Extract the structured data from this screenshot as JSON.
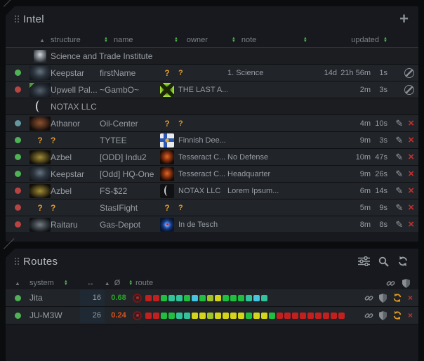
{
  "glyphs": {
    "sort_up": "▲",
    "sort_down": "▼",
    "updown": "↔",
    "avg": "Ø",
    "unknown": "?",
    "plus": "+",
    "pencil": "✎",
    "close": "×"
  },
  "colors": {
    "page_bg": "#0b0c0e",
    "panel_bg": "#17191e",
    "row_bg": "#212429",
    "group_row_bg": "#1b1d21",
    "status_green": "#4fb356",
    "status_red": "#b84442",
    "status_teal": "#64989e",
    "sort_arrow_green": "#4fae4f",
    "unknown_orange": "#e09a2c",
    "delete_red": "#c23030",
    "sec_high_green": "#26a826",
    "sec_low_orange": "#d9531e",
    "refresh_orange": "#e09a20",
    "route_red": "#c41f1f",
    "route_green": "#1fbf3f",
    "route_teal": "#2fc49a",
    "route_cyan": "#46c5e2",
    "route_yellow": "#d4d418",
    "route_olive": "#9fc428"
  },
  "intel": {
    "title": "Intel",
    "columns": {
      "structure": "structure",
      "name": "name",
      "owner": "owner",
      "note": "note",
      "updated": "updated"
    },
    "rows": [
      {
        "group": true,
        "icon": "sti",
        "label": "Science and Trade Institute"
      },
      {
        "status": "green",
        "struct_icon": "keepstar",
        "structure": "Keepstar",
        "name": "firstName",
        "owner_icon": "unknown",
        "owner": "?",
        "note": "1. Science",
        "upd_d": "14d",
        "upd_m": "21h 56m",
        "upd_s": "1s",
        "actions": "ban"
      },
      {
        "status": "red",
        "struct_icon": "upwell",
        "structure": "Upwell Pal...",
        "name": "~GambO~",
        "owner_icon": "lasta",
        "owner": "THE LAST A...",
        "note": "",
        "upd_d": "",
        "upd_m": "2m",
        "upd_s": "3s",
        "actions": "ban"
      },
      {
        "group": true,
        "icon": "notax",
        "label": "NOTAX LLC"
      },
      {
        "status": "teal",
        "struct_icon": "athanor",
        "structure": "Athanor",
        "name": "Oil-Center",
        "owner_icon": "unknown",
        "owner": "?",
        "note": "",
        "upd_d": "",
        "upd_m": "4m",
        "upd_s": "10s",
        "actions": "edit"
      },
      {
        "status": "green",
        "struct_icon": "unknown",
        "structure": "?",
        "name": "TYTEE",
        "owner_icon": "finnish",
        "owner": "Finnish Dee...",
        "note": "",
        "upd_d": "",
        "upd_m": "9m",
        "upd_s": "3s",
        "actions": "edit"
      },
      {
        "status": "green",
        "struct_icon": "azbel",
        "structure": "Azbel",
        "name": "[ODD] Indu2",
        "owner_icon": "tesseract",
        "owner": "Tesseract C...",
        "note": "No Defense",
        "upd_d": "",
        "upd_m": "10m",
        "upd_s": "47s",
        "actions": "edit"
      },
      {
        "status": "green",
        "struct_icon": "keepstar",
        "structure": "Keepstar",
        "name": "[Odd] HQ-One",
        "owner_icon": "tesseract",
        "owner": "Tesseract C...",
        "note": "Headquarter",
        "upd_d": "",
        "upd_m": "9m",
        "upd_s": "26s",
        "actions": "edit"
      },
      {
        "status": "red",
        "struct_icon": "azbel",
        "structure": "Azbel",
        "name": "FS-$22",
        "owner_icon": "notax",
        "owner": "NOTAX LLC",
        "note": "Lorem Ipsum...",
        "upd_d": "",
        "upd_m": "6m",
        "upd_s": "14s",
        "actions": "edit"
      },
      {
        "status": "red",
        "struct_icon": "unknown",
        "structure": "?",
        "name": "StasIFight",
        "owner_icon": "unknown",
        "owner": "?",
        "note": "",
        "upd_d": "",
        "upd_m": "5m",
        "upd_s": "9s",
        "actions": "edit"
      },
      {
        "status": "red",
        "struct_icon": "raitaru",
        "structure": "Raitaru",
        "name": "Gas-Depot",
        "owner_icon": "indetesch",
        "owner": "In de Tesch",
        "note": "",
        "upd_d": "",
        "upd_m": "8m",
        "upd_s": "8s",
        "actions": "edit"
      }
    ]
  },
  "routes": {
    "title": "Routes",
    "toolbar_icons": [
      "settings-sliders",
      "search",
      "refresh"
    ],
    "columns": {
      "system": "system",
      "jumps": "↔",
      "avg": "Ø",
      "route": "route"
    },
    "header_icons": [
      "link",
      "shield"
    ],
    "rows": [
      {
        "status": "green",
        "system": "Jita",
        "jumps": "16",
        "security": "0.68",
        "sec_color": "#26a826",
        "route": [
          "red",
          "red",
          "green",
          "teal",
          "teal",
          "green",
          "cyan",
          "green",
          "olive",
          "yellow",
          "green",
          "green",
          "green",
          "teal",
          "cyan",
          "teal"
        ]
      },
      {
        "status": "green",
        "system": "JU-M3W",
        "jumps": "26",
        "security": "0.24",
        "sec_color": "#d9531e",
        "route": [
          "red",
          "red",
          "green",
          "green",
          "teal",
          "teal",
          "yellow",
          "yellow",
          "olive",
          "yellow",
          "yellow",
          "yellow",
          "yellow",
          "green",
          "yellow",
          "yellow",
          "green",
          "red",
          "red",
          "red",
          "red",
          "red",
          "red",
          "red",
          "red",
          "red"
        ]
      }
    ]
  }
}
